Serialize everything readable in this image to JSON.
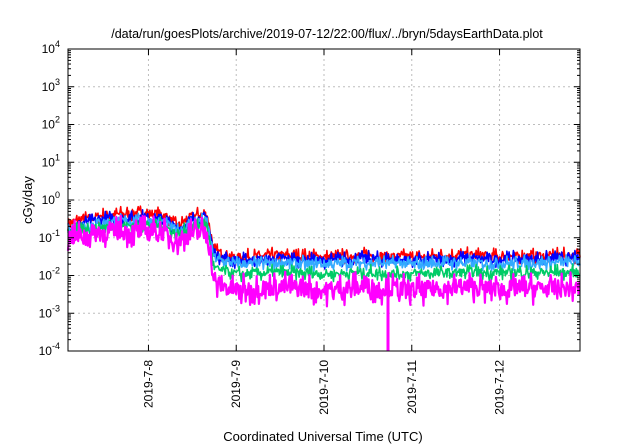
{
  "chart_data": {
    "type": "line",
    "title": "/data/run/goesPlots/archive/2019-07-12/22:00/flux/../bryn/5daysEarthData.plot",
    "xlabel": "Coordinated Universal Time (UTC)",
    "ylabel": "cGy/day",
    "xlim": [
      "2019-07-07T02:00",
      "2019-07-12T22:00"
    ],
    "x_ticks": [
      {
        "date": "2019-07-08",
        "label": "2019-7-8"
      },
      {
        "date": "2019-07-09",
        "label": "2019-7-9"
      },
      {
        "date": "2019-07-10",
        "label": "2019-7-10"
      },
      {
        "date": "2019-07-11",
        "label": "2019-7-11"
      },
      {
        "date": "2019-07-12",
        "label": "2019-7-12"
      }
    ],
    "y_scale": "log",
    "ylim": [
      0.0001,
      10000
    ],
    "y_ticks": [
      {
        "value": 0.0001,
        "mantissa": "10",
        "exp": "-4"
      },
      {
        "value": 0.001,
        "mantissa": "10",
        "exp": "-3"
      },
      {
        "value": 0.01,
        "mantissa": "10",
        "exp": "-2"
      },
      {
        "value": 0.1,
        "mantissa": "10",
        "exp": "-1"
      },
      {
        "value": 1,
        "mantissa": "10",
        "exp": "0"
      },
      {
        "value": 10,
        "mantissa": "10",
        "exp": "1"
      },
      {
        "value": 100,
        "mantissa": "10",
        "exp": "2"
      },
      {
        "value": 1000,
        "mantissa": "10",
        "exp": "3"
      },
      {
        "value": 10000,
        "mantissa": "10",
        "exp": "4"
      }
    ],
    "grid": true,
    "series": [
      {
        "color": "#ff0000",
        "x": [
          "2019-07-07T02:00",
          "2019-07-07T12:00",
          "2019-07-07T22:00",
          "2019-07-08T04:00",
          "2019-07-08T08:00",
          "2019-07-08T12:00",
          "2019-07-08T15:00",
          "2019-07-08T16:00",
          "2019-07-08T18:00",
          "2019-07-09T00:00",
          "2019-07-09T12:00",
          "2019-07-10T00:00",
          "2019-07-10T12:00",
          "2019-07-11T00:00",
          "2019-07-11T12:00",
          "2019-07-12T00:00",
          "2019-07-12T12:00",
          "2019-07-12T22:00"
        ],
        "values": [
          0.25,
          0.4,
          0.45,
          0.42,
          0.2,
          0.38,
          0.42,
          0.42,
          0.045,
          0.03,
          0.035,
          0.03,
          0.035,
          0.03,
          0.035,
          0.032,
          0.033,
          0.034
        ]
      },
      {
        "color": "#0000ff",
        "x": [
          "2019-07-07T02:00",
          "2019-07-07T12:00",
          "2019-07-07T22:00",
          "2019-07-08T04:00",
          "2019-07-08T08:00",
          "2019-07-08T12:00",
          "2019-07-08T15:00",
          "2019-07-08T16:00",
          "2019-07-08T18:00",
          "2019-07-09T00:00",
          "2019-07-09T12:00",
          "2019-07-10T00:00",
          "2019-07-10T12:00",
          "2019-07-11T00:00",
          "2019-07-11T12:00",
          "2019-07-12T00:00",
          "2019-07-12T12:00",
          "2019-07-12T22:00"
        ],
        "values": [
          0.2,
          0.32,
          0.35,
          0.33,
          0.17,
          0.3,
          0.34,
          0.34,
          0.035,
          0.025,
          0.028,
          0.025,
          0.028,
          0.025,
          0.028,
          0.027,
          0.028,
          0.028
        ]
      },
      {
        "color": "#33aaff",
        "x": [
          "2019-07-07T02:00",
          "2019-07-07T12:00",
          "2019-07-07T22:00",
          "2019-07-08T04:00",
          "2019-07-08T08:00",
          "2019-07-08T12:00",
          "2019-07-08T15:00",
          "2019-07-08T16:00",
          "2019-07-08T18:00",
          "2019-07-09T00:00",
          "2019-07-09T12:00",
          "2019-07-10T00:00",
          "2019-07-10T12:00",
          "2019-07-11T00:00",
          "2019-07-11T12:00",
          "2019-07-12T00:00",
          "2019-07-12T12:00",
          "2019-07-12T22:00"
        ],
        "values": [
          0.17,
          0.26,
          0.28,
          0.27,
          0.15,
          0.25,
          0.28,
          0.28,
          0.028,
          0.02,
          0.022,
          0.02,
          0.022,
          0.02,
          0.022,
          0.021,
          0.022,
          0.022
        ]
      },
      {
        "color": "#00cc66",
        "x": [
          "2019-07-07T02:00",
          "2019-07-07T12:00",
          "2019-07-07T22:00",
          "2019-07-08T04:00",
          "2019-07-08T08:00",
          "2019-07-08T12:00",
          "2019-07-08T15:00",
          "2019-07-08T16:00",
          "2019-07-08T18:00",
          "2019-07-09T00:00",
          "2019-07-09T12:00",
          "2019-07-10T00:00",
          "2019-07-10T12:00",
          "2019-07-11T00:00",
          "2019-07-11T12:00",
          "2019-07-12T00:00",
          "2019-07-12T12:00",
          "2019-07-12T22:00"
        ],
        "values": [
          0.14,
          0.2,
          0.22,
          0.21,
          0.12,
          0.19,
          0.21,
          0.21,
          0.015,
          0.011,
          0.012,
          0.011,
          0.012,
          0.011,
          0.012,
          0.012,
          0.012,
          0.012
        ]
      },
      {
        "color": "#ff00ff",
        "x": [
          "2019-07-07T02:00",
          "2019-07-07T12:00",
          "2019-07-07T22:00",
          "2019-07-08T04:00",
          "2019-07-08T08:00",
          "2019-07-08T12:00",
          "2019-07-08T15:00",
          "2019-07-08T16:00",
          "2019-07-08T18:00",
          "2019-07-09T00:00",
          "2019-07-09T12:00",
          "2019-07-10T00:00",
          "2019-07-10T12:00",
          "2019-07-11T00:00",
          "2019-07-11T12:00",
          "2019-07-12T00:00",
          "2019-07-12T12:00",
          "2019-07-12T22:00"
        ],
        "values": [
          0.1,
          0.14,
          0.15,
          0.14,
          0.08,
          0.13,
          0.15,
          0.15,
          0.006,
          0.004,
          0.005,
          0.004,
          0.005,
          0.004,
          0.005,
          0.0045,
          0.0045,
          0.0045
        ]
      }
    ],
    "annotations": [
      {
        "type": "dip",
        "color": "#ff00ff",
        "x": "2019-07-10T17:30",
        "value": 0.0001
      }
    ]
  }
}
